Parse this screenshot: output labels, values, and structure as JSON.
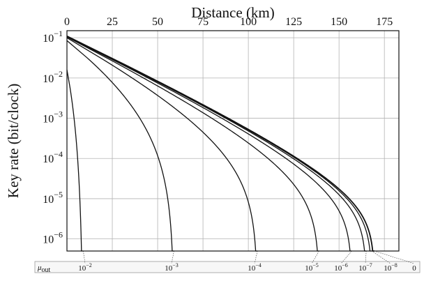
{
  "chart_data": {
    "type": "line",
    "xlabel": "Distance (km)",
    "ylabel": "Key rate (bit/clock)",
    "xlim": [
      0,
      183
    ],
    "x_ticks": [
      0,
      25,
      50,
      75,
      100,
      125,
      150,
      175
    ],
    "x_tick_labels": [
      "0",
      "25",
      "50",
      "75",
      "100",
      "125",
      "150",
      "175"
    ],
    "y_scale": "log",
    "ylim": [
      5e-07,
      0.15
    ],
    "y_ticks": [
      1e-06,
      1e-05,
      0.0001,
      0.001,
      0.01,
      0.1
    ],
    "y_tick_labels": [
      {
        "base": "10",
        "exp": "−6"
      },
      {
        "base": "10",
        "exp": "−5"
      },
      {
        "base": "10",
        "exp": "−4"
      },
      {
        "base": "10",
        "exp": "−3"
      },
      {
        "base": "10",
        "exp": "−2"
      },
      {
        "base": "10",
        "exp": "−1"
      }
    ],
    "grid": true,
    "mu_label": {
      "base": "μ",
      "sub": "out"
    },
    "series": [
      {
        "mu_base": "10",
        "mu_exp": "−2",
        "cutoff_km": 9,
        "y0": 0.016
      },
      {
        "mu_base": "10",
        "mu_exp": "−3",
        "cutoff_km": 59,
        "y0": 0.085
      },
      {
        "mu_base": "10",
        "mu_exp": "−4",
        "cutoff_km": 105,
        "y0": 0.1
      },
      {
        "mu_base": "10",
        "mu_exp": "−5",
        "cutoff_km": 139,
        "y0": 0.105
      },
      {
        "mu_base": "10",
        "mu_exp": "−6",
        "cutoff_km": 157,
        "y0": 0.107
      },
      {
        "mu_base": "10",
        "mu_exp": "−7",
        "cutoff_km": 165,
        "y0": 0.108
      },
      {
        "mu_base": "10",
        "mu_exp": "−8",
        "cutoff_km": 168,
        "y0": 0.109
      },
      {
        "mu_base": "0",
        "mu_exp": "",
        "cutoff_km": 169.5,
        "y0": 0.11
      }
    ]
  }
}
